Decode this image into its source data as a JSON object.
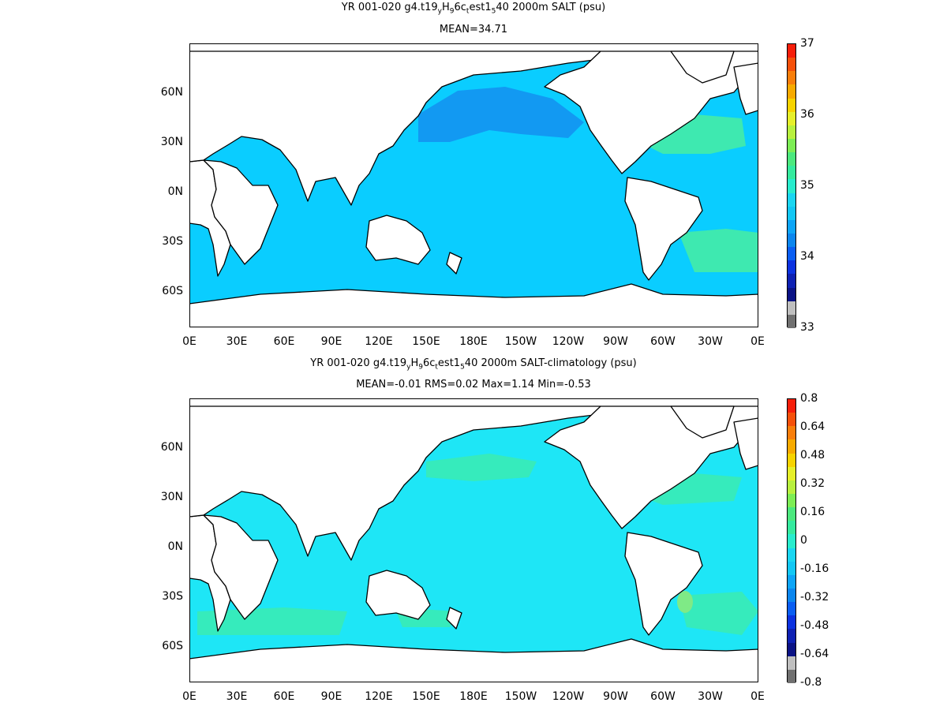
{
  "panels": [
    {
      "title_prefix": "YR 001-020 g4.t19",
      "title_sub1": "y",
      "title_mid1": "H",
      "title_sub2": "9",
      "title_mid2": "6c",
      "title_sub3": "t",
      "title_mid3": "est1",
      "title_sub4": "5",
      "title_suffix": "40 2000m SALT (psu)",
      "stats": "MEAN=34.71",
      "colorbar_ticks": [
        "37",
        "36",
        "35",
        "34",
        "33"
      ],
      "colors": [
        "#f61e0a",
        "#f5500a",
        "#f87e0a",
        "#f7aa00",
        "#f7d300",
        "#e6ef2a",
        "#b8f03e",
        "#7ded55",
        "#4ce87e",
        "#35ea9e",
        "#28eccd",
        "#1ad6f1",
        "#12c7f4",
        "#0da5f7",
        "#0b86ee",
        "#0a5ef2",
        "#0c32e0",
        "#0e21b3",
        "#0b1385",
        "#bfbfbf",
        "#707070"
      ],
      "ocean_colors": {
        "main": "#0acdff",
        "north_pacific": "#1299f2",
        "deep": "#1a7cf0",
        "atlantic": "#3ee9b0"
      }
    },
    {
      "title_prefix": "YR 001-020 g4.t19",
      "title_sub1": "y",
      "title_mid1": "H",
      "title_sub2": "9",
      "title_mid2": "6c",
      "title_sub3": "t",
      "title_mid3": "est1",
      "title_sub4": "5",
      "title_suffix": "40 2000m SALT-climatology (psu)",
      "stats": "MEAN=-0.01   RMS=0.02   Max=1.14   Min=-0.53",
      "colorbar_ticks": [
        "0.8",
        "0.64",
        "0.48",
        "0.32",
        "0.16",
        "0",
        "-0.16",
        "-0.32",
        "-0.48",
        "-0.64",
        "-0.8"
      ],
      "colors": [
        "#f61e0a",
        "#f5500a",
        "#f87e0a",
        "#f7aa00",
        "#f7d300",
        "#e6ef2a",
        "#b8f03e",
        "#7ded55",
        "#4ce87e",
        "#35ea9e",
        "#28eccd",
        "#1ad6f1",
        "#12c7f4",
        "#0da5f7",
        "#0b86ee",
        "#0a5ef2",
        "#0c32e0",
        "#0e21b3",
        "#0b1385",
        "#bfbfbf",
        "#707070"
      ],
      "ocean_colors": {
        "main": "#1ee6f6",
        "patch": "#38ebb6",
        "warm": "#7fea86"
      }
    }
  ],
  "x_ticks": [
    "0E",
    "30E",
    "60E",
    "90E",
    "120E",
    "150E",
    "180E",
    "150W",
    "120W",
    "90W",
    "60W",
    "30W",
    "0E"
  ],
  "y_ticks": [
    "60N",
    "30N",
    "0N",
    "30S",
    "60S"
  ]
}
